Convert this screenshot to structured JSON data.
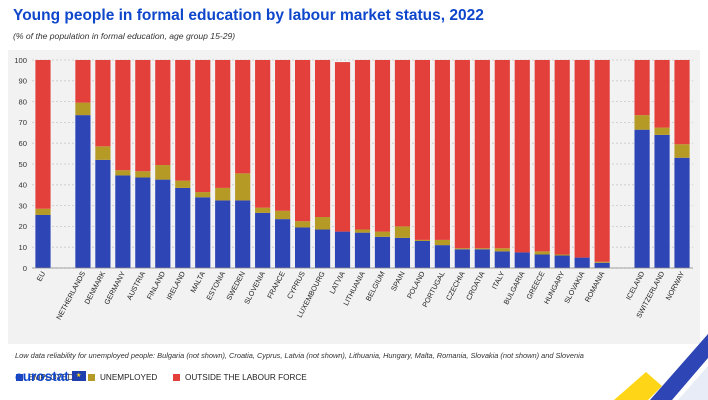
{
  "title": "Young people in formal education by labour market status, 2022",
  "subtitle": "(% of the population in formal education, age group 15-29)",
  "legend": {
    "employed": "EMPLOYED",
    "unemployed": "UNEMPLOYED",
    "outside": "OUTSIDE THE LABOUR FORCE"
  },
  "note": "Low data reliability for unemployed people: Bulgaria (not shown), Croatia, Cyprus, Latvia (not shown), Lithuania, Hungary, Malta, Romania, Slovakia (not shown) and Slovenia",
  "logo_text": "eurostat",
  "colors": {
    "employed": "#2d45b5",
    "unemployed": "#b59a26",
    "outside": "#e3403c",
    "title": "#0e47cb"
  },
  "chart_data": {
    "type": "bar",
    "stacked": true,
    "ylim": [
      0,
      100
    ],
    "yticks": [
      0,
      10,
      20,
      30,
      40,
      50,
      60,
      70,
      80,
      90,
      100
    ],
    "grid": true,
    "categories": [
      "EU",
      "NETHERLANDS",
      "DENMARK",
      "GERMANY",
      "AUSTRIA",
      "FINLAND",
      "IRELAND",
      "MALTA",
      "ESTONIA",
      "SWEDEN",
      "SLOVENIA",
      "FRANCE",
      "CYPRUS",
      "LUXEMBOURG",
      "LATVIA",
      "LITHUANIA",
      "BELGIUM",
      "SPAIN",
      "POLAND",
      "PORTUGAL",
      "CZECHIA",
      "CROATIA",
      "ITALY",
      "BULGARIA",
      "GREECE",
      "HUNGARY",
      "SLOVAKIA",
      "ROMANIA",
      "ICELAND",
      "SWITZERLAND",
      "NORWAY"
    ],
    "series": [
      {
        "name": "EMPLOYED",
        "values": [
          25.5,
          73.5,
          52,
          44.5,
          43.5,
          42.5,
          38.5,
          34,
          32.5,
          32.5,
          26.5,
          23.5,
          19.5,
          18.5,
          17.5,
          17,
          15,
          14.5,
          13,
          11,
          9,
          9,
          8,
          7.5,
          6.5,
          6,
          5,
          2.5,
          66.5,
          64,
          53
        ]
      },
      {
        "name": "UNEMPLOYED",
        "values": [
          3,
          6,
          6.5,
          2.5,
          3,
          7,
          3.5,
          2.5,
          6,
          13,
          2.5,
          4,
          3,
          6,
          0,
          1.5,
          2.5,
          5.5,
          0.5,
          2.5,
          0.5,
          0.5,
          1.5,
          0,
          1.5,
          0.5,
          0,
          0.5,
          7,
          3.5,
          6.5
        ]
      },
      {
        "name": "OUTSIDE THE LABOUR FORCE",
        "values": [
          71.5,
          20.5,
          41.5,
          53,
          53.5,
          50.5,
          58,
          63.5,
          61.5,
          54.5,
          71,
          72.5,
          77.5,
          75.5,
          81.5,
          81.5,
          82.5,
          80,
          86.5,
          86.5,
          90.5,
          90.5,
          90.5,
          92.5,
          92,
          93.5,
          95,
          97,
          26.5,
          32.5,
          40.5
        ]
      }
    ]
  }
}
